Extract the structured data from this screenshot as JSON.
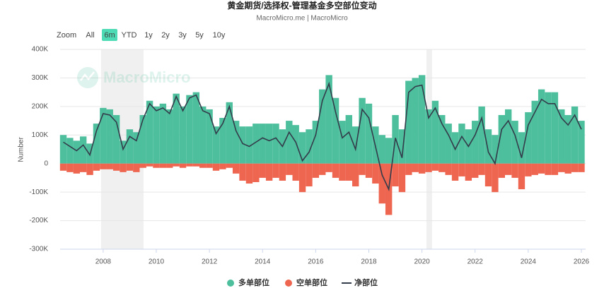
{
  "chart_data": {
    "type": "combo",
    "title": "黄金期货/选择权-管理基金多空部位变动",
    "subtitle": "MacroMicro.me | MacroMicro",
    "watermark": "MacroMicro",
    "y_label": "Number",
    "range_selector": {
      "label": "Zoom",
      "active": 1,
      "buttons": [
        "All",
        "6m",
        "YTD",
        "1y",
        "2y",
        "3y",
        "5y",
        "10y"
      ]
    },
    "xlim": [
      2006.38,
      2026.16
    ],
    "xticks": [
      2008,
      2010,
      2012,
      2014,
      2016,
      2018,
      2020,
      2022,
      2024,
      2026
    ],
    "ylim": [
      -300000,
      400000
    ],
    "yticks": [
      {
        "value": -300000,
        "label": "-300K"
      },
      {
        "value": -200000,
        "label": "-200K"
      },
      {
        "value": -100000,
        "label": "-100K"
      },
      0,
      {
        "value": 100000,
        "label": "100K"
      },
      {
        "value": 200000,
        "label": "200K"
      },
      {
        "value": 300000,
        "label": "300K"
      },
      {
        "value": 400000,
        "label": "400K"
      }
    ],
    "grid": true,
    "shaded_ranges": [
      [
        2007.92,
        2009.52
      ],
      [
        2020.17,
        2020.38
      ]
    ],
    "shade_color": "#f0f0f0",
    "x": [
      2006.5,
      2006.75,
      2007,
      2007.25,
      2007.5,
      2007.75,
      2008,
      2008.25,
      2008.5,
      2008.75,
      2009,
      2009.25,
      2009.5,
      2009.75,
      2010,
      2010.25,
      2010.5,
      2010.75,
      2011,
      2011.25,
      2011.5,
      2011.75,
      2012,
      2012.25,
      2012.5,
      2012.75,
      2013,
      2013.25,
      2013.5,
      2013.75,
      2014,
      2014.25,
      2014.5,
      2014.75,
      2015,
      2015.25,
      2015.5,
      2015.75,
      2016,
      2016.25,
      2016.5,
      2016.75,
      2017,
      2017.25,
      2017.5,
      2017.75,
      2018,
      2018.25,
      2018.5,
      2018.75,
      2019,
      2019.25,
      2019.5,
      2019.75,
      2020,
      2020.25,
      2020.5,
      2020.75,
      2021,
      2021.25,
      2021.5,
      2021.75,
      2022,
      2022.25,
      2022.5,
      2022.75,
      2023,
      2023.25,
      2023.5,
      2023.75,
      2024,
      2024.25,
      2024.5,
      2024.75,
      2025,
      2025.25,
      2025.5,
      2025.75,
      2026
    ],
    "series": [
      {
        "name": "多单部位",
        "kind": "bar",
        "color": "#4dbf9d",
        "values": [
          100000,
          90000,
          80000,
          95000,
          70000,
          140000,
          195000,
          190000,
          170000,
          80000,
          120000,
          110000,
          170000,
          220000,
          200000,
          210000,
          190000,
          245000,
          200000,
          240000,
          250000,
          200000,
          190000,
          130000,
          160000,
          215000,
          150000,
          130000,
          130000,
          140000,
          140000,
          140000,
          140000,
          120000,
          150000,
          135000,
          110000,
          120000,
          150000,
          260000,
          310000,
          230000,
          150000,
          170000,
          130000,
          230000,
          210000,
          130000,
          100000,
          90000,
          170000,
          120000,
          290000,
          300000,
          310000,
          190000,
          220000,
          170000,
          140000,
          110000,
          140000,
          120000,
          150000,
          200000,
          120000,
          100000,
          170000,
          190000,
          150000,
          110000,
          180000,
          220000,
          260000,
          250000,
          250000,
          190000,
          170000,
          200000,
          150000
        ]
      },
      {
        "name": "空单部位",
        "kind": "bar",
        "color": "#ee6550",
        "values": [
          -25000,
          -30000,
          -35000,
          -30000,
          -40000,
          -25000,
          -20000,
          -20000,
          -25000,
          -30000,
          -25000,
          -30000,
          -15000,
          -10000,
          -15000,
          -15000,
          -15000,
          -10000,
          -15000,
          -10000,
          -10000,
          -15000,
          -15000,
          -25000,
          -20000,
          -15000,
          -35000,
          -60000,
          -70000,
          -65000,
          -50000,
          -60000,
          -50000,
          -60000,
          -40000,
          -60000,
          -100000,
          -80000,
          -50000,
          -40000,
          -30000,
          -50000,
          -60000,
          -60000,
          -80000,
          -40000,
          -50000,
          -70000,
          -140000,
          -180000,
          -80000,
          -100000,
          -40000,
          -30000,
          -35000,
          -30000,
          -25000,
          -30000,
          -40000,
          -60000,
          -45000,
          -60000,
          -50000,
          -40000,
          -80000,
          -100000,
          -50000,
          -40000,
          -50000,
          -90000,
          -45000,
          -40000,
          -35000,
          -40000,
          -40000,
          -30000,
          -35000,
          -30000,
          -30000
        ]
      },
      {
        "name": "净部位",
        "kind": "line",
        "color": "#333c4a",
        "values": [
          75000,
          60000,
          45000,
          65000,
          30000,
          115000,
          175000,
          170000,
          145000,
          50000,
          95000,
          80000,
          155000,
          210000,
          185000,
          195000,
          175000,
          235000,
          185000,
          230000,
          240000,
          185000,
          175000,
          105000,
          140000,
          200000,
          115000,
          70000,
          60000,
          75000,
          90000,
          80000,
          90000,
          60000,
          110000,
          75000,
          10000,
          40000,
          100000,
          220000,
          280000,
          180000,
          90000,
          110000,
          50000,
          190000,
          160000,
          60000,
          -40000,
          -90000,
          90000,
          20000,
          250000,
          270000,
          275000,
          160000,
          195000,
          140000,
          100000,
          50000,
          95000,
          60000,
          100000,
          160000,
          40000,
          0,
          120000,
          150000,
          100000,
          20000,
          135000,
          180000,
          225000,
          210000,
          210000,
          160000,
          135000,
          170000,
          120000
        ]
      }
    ]
  }
}
